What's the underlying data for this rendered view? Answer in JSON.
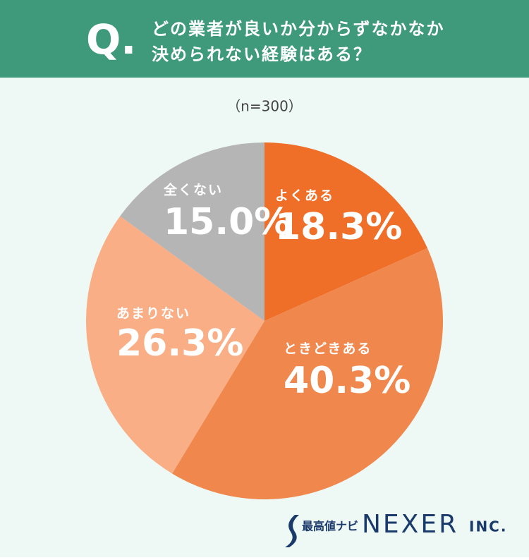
{
  "chart_data": {
    "type": "pie",
    "badge": "Q.",
    "title": [
      "どの業者が良いか分からずなかなか",
      "決められない経験はある？"
    ],
    "subtitle": "（n=300）",
    "categories": [
      "よくある",
      "ときどきある",
      "あまりない",
      "全くない"
    ],
    "values": [
      18.3,
      40.3,
      26.3,
      15.0
    ],
    "value_labels": [
      "18.3%",
      "40.3%",
      "26.3%",
      "15.0%"
    ],
    "colors": [
      "#ef6f28",
      "#f0874d",
      "#f9ae86",
      "#b5b5b5"
    ]
  },
  "footer": {
    "brand": "最高値ナビ",
    "company": "NEXER",
    "suffix": "INC."
  }
}
